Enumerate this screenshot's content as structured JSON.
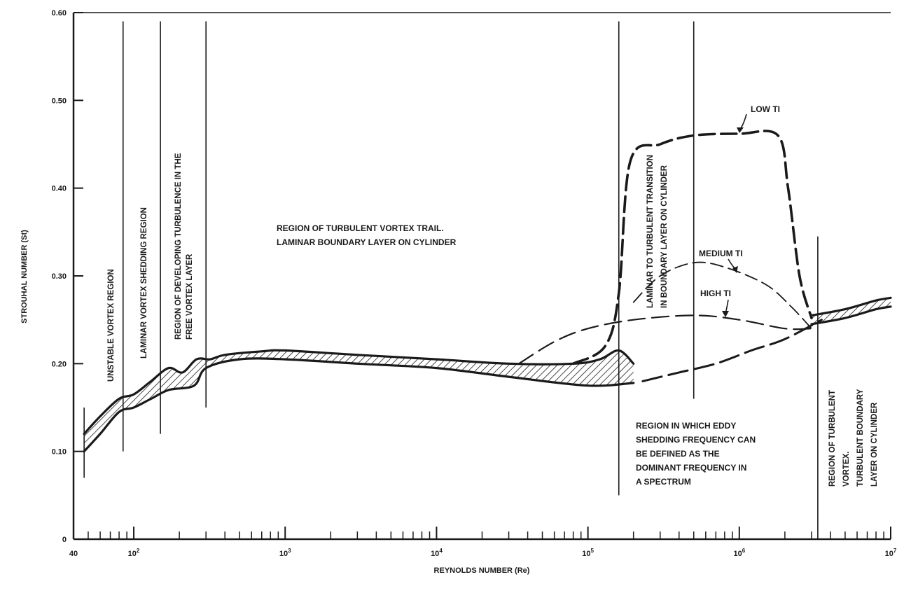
{
  "chart_data": {
    "type": "line",
    "title": "",
    "xlabel": "REYNOLDS NUMBER (Re)",
    "ylabel": "STROUHAL NUMBER (St)",
    "x_scale": "log",
    "xlim": [
      40,
      10000000
    ],
    "ylim": [
      0,
      0.6
    ],
    "grid": false,
    "x_tick_labels": [
      {
        "value": 40,
        "label": "40"
      },
      {
        "value": 100,
        "label": "10",
        "exp": "2"
      },
      {
        "value": 1000,
        "label": "10",
        "exp": "3"
      },
      {
        "value": 10000,
        "label": "10",
        "exp": "4"
      },
      {
        "value": 100000,
        "label": "10",
        "exp": "5"
      },
      {
        "value": 1000000,
        "label": "10",
        "exp": "6"
      },
      {
        "value": 10000000,
        "label": "10",
        "exp": "7"
      }
    ],
    "y_tick_labels": [
      {
        "value": 0,
        "label": "0"
      },
      {
        "value": 0.1,
        "label": "0.10"
      },
      {
        "value": 0.2,
        "label": "0.20"
      },
      {
        "value": 0.3,
        "label": "0.30"
      },
      {
        "value": 0.4,
        "label": "0.40"
      },
      {
        "value": 0.5,
        "label": "0.50"
      },
      {
        "value": 0.6,
        "label": "0.60"
      }
    ],
    "band": {
      "upper": [
        [
          47,
          0.12
        ],
        [
          60,
          0.14
        ],
        [
          80,
          0.16
        ],
        [
          100,
          0.165
        ],
        [
          130,
          0.18
        ],
        [
          170,
          0.195
        ],
        [
          210,
          0.19
        ],
        [
          260,
          0.205
        ],
        [
          320,
          0.205
        ],
        [
          400,
          0.21
        ],
        [
          700,
          0.214
        ],
        [
          1000,
          0.215
        ],
        [
          3000,
          0.21
        ],
        [
          10000,
          0.205
        ],
        [
          30000,
          0.2
        ],
        [
          80000,
          0.2
        ],
        [
          120000,
          0.205
        ],
        [
          160000,
          0.215
        ],
        [
          200000,
          0.2
        ]
      ],
      "lower": [
        [
          47,
          0.1
        ],
        [
          60,
          0.12
        ],
        [
          80,
          0.145
        ],
        [
          100,
          0.15
        ],
        [
          130,
          0.16
        ],
        [
          170,
          0.17
        ],
        [
          250,
          0.175
        ],
        [
          300,
          0.195
        ],
        [
          500,
          0.205
        ],
        [
          1000,
          0.205
        ],
        [
          3000,
          0.2
        ],
        [
          10000,
          0.195
        ],
        [
          30000,
          0.185
        ],
        [
          100000,
          0.175
        ],
        [
          200000,
          0.178
        ]
      ]
    },
    "series": [
      {
        "name": "LOW TI",
        "points": [
          [
            80000,
            0.2
          ],
          [
            130000,
            0.22
          ],
          [
            160000,
            0.28
          ],
          [
            190000,
            0.43
          ],
          [
            300000,
            0.45
          ],
          [
            500000,
            0.46
          ],
          [
            1000000,
            0.462
          ],
          [
            1800000,
            0.46
          ],
          [
            2100000,
            0.4
          ],
          [
            2500000,
            0.3
          ],
          [
            3000000,
            0.252
          ]
        ]
      },
      {
        "name": "MEDIUM TI",
        "points": [
          [
            200000,
            0.27
          ],
          [
            300000,
            0.3
          ],
          [
            500000,
            0.315
          ],
          [
            800000,
            0.31
          ],
          [
            1500000,
            0.29
          ],
          [
            2200000,
            0.265
          ],
          [
            3000000,
            0.24
          ]
        ]
      },
      {
        "name": "HIGH TI",
        "points": [
          [
            35000,
            0.2
          ],
          [
            60000,
            0.225
          ],
          [
            100000,
            0.24
          ],
          [
            200000,
            0.25
          ],
          [
            500000,
            0.255
          ],
          [
            1000000,
            0.25
          ],
          [
            2000000,
            0.24
          ],
          [
            3000000,
            0.24
          ]
        ]
      },
      {
        "name": "",
        "points": [
          [
            230000,
            0.18
          ],
          [
            400000,
            0.19
          ],
          [
            700000,
            0.2
          ],
          [
            1200000,
            0.215
          ],
          [
            2000000,
            0.228
          ],
          [
            3500000,
            0.25
          ]
        ]
      }
    ],
    "upper_band": {
      "upper": [
        [
          3000000,
          0.255
        ],
        [
          5000000,
          0.262
        ],
        [
          8000000,
          0.272
        ],
        [
          10000000,
          0.275
        ]
      ],
      "lower": [
        [
          3000000,
          0.245
        ],
        [
          5000000,
          0.252
        ],
        [
          8000000,
          0.262
        ],
        [
          10000000,
          0.265
        ]
      ]
    },
    "boundaries": [
      {
        "x": 47,
        "ymin": 0.07,
        "ymax": 0.15
      },
      {
        "x": 85,
        "ymin": 0.1,
        "ymax": 0.59
      },
      {
        "x": 150,
        "ymin": 0.12,
        "ymax": 0.59
      },
      {
        "x": 300,
        "ymin": 0.15,
        "ymax": 0.59
      },
      {
        "x": 160000,
        "ymin": 0.05,
        "ymax": 0.59
      },
      {
        "x": 500000,
        "ymin": 0.16,
        "ymax": 0.59
      },
      {
        "x": 3300000,
        "ymin": 0.0,
        "ymax": 0.345
      }
    ],
    "region_labels": [
      {
        "lines": [
          "UNSTABLE VORTEX REGION"
        ],
        "rotated": true
      },
      {
        "lines": [
          "LAMINAR VORTEX SHEDDING REGION"
        ],
        "rotated": true
      },
      {
        "lines": [
          "REGION OF DEVELOPING TURBULENCE IN THE",
          "FREE VORTEX LAYER"
        ],
        "rotated": true
      },
      {
        "lines": [
          "REGION OF TURBULENT VORTEX TRAIL.",
          "LAMINAR BOUNDARY LAYER ON CYLINDER"
        ],
        "rotated": false
      },
      {
        "lines": [
          "LAMINAR TO TURBULENT TRANSITION",
          "IN BOUNDARY LAYER ON CYLINDER"
        ],
        "rotated": true
      },
      {
        "lines": [
          "REGION IN WHICH EDDY",
          "SHEDDING FREQUENCY CAN",
          "BE DEFINED AS THE",
          "DOMINANT FREQUENCY IN",
          "A SPECTRUM"
        ],
        "rotated": false
      },
      {
        "lines": [
          "REGION OF TURBULENT",
          "VORTEX.",
          "TURBULENT BOUNDARY",
          "LAYER ON CYLINDER"
        ],
        "rotated": true
      }
    ],
    "curve_labels": [
      "LOW TI",
      "MEDIUM TI",
      "HIGH TI"
    ]
  }
}
